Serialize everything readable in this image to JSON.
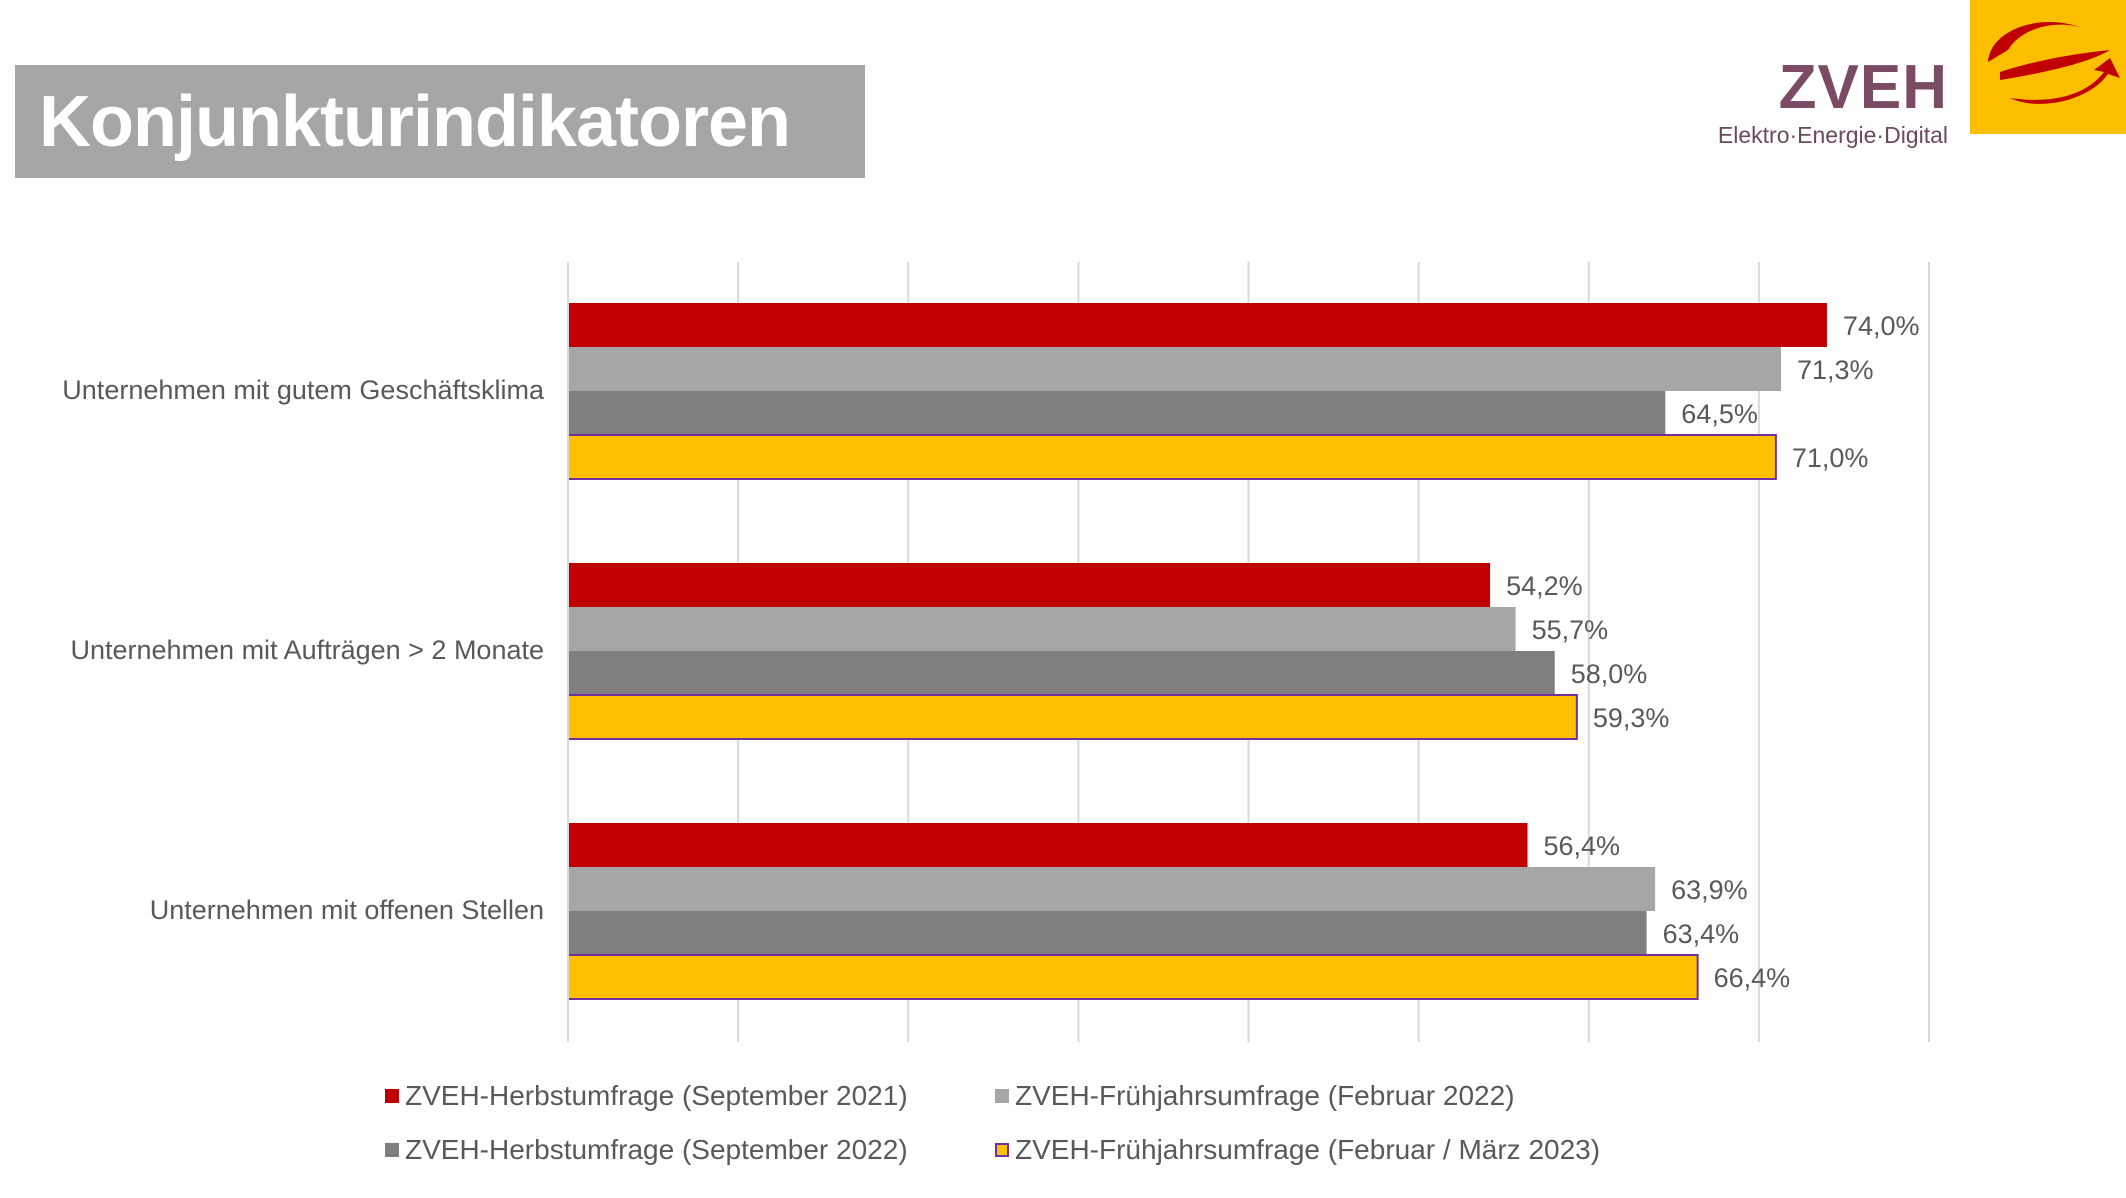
{
  "title": "Konjunkturindikatoren",
  "logo": {
    "name": "ZVEH",
    "tagline": "Elektro·Energie·Digital",
    "icon": "zveh-e-mark-icon"
  },
  "colors": {
    "accent": "#fbbf00",
    "title_bg": "#a6a6a6"
  },
  "chart_data": {
    "type": "bar",
    "orientation": "horizontal",
    "categories": [
      "Unternehmen mit gutem Geschäftsklima",
      "Unternehmen mit Aufträgen > 2 Monate",
      "Unternehmen mit offenen Stellen"
    ],
    "series": [
      {
        "name": "ZVEH-Herbstumfrage (September 2021)",
        "color": "#c00000",
        "values": [
          74.0,
          54.2,
          56.4
        ],
        "labels": [
          "74,0%",
          "54,2%",
          "56,4%"
        ]
      },
      {
        "name": "ZVEH-Frühjahrsumfrage (Februar 2022)",
        "color": "#a6a6a6",
        "values": [
          71.3,
          55.7,
          63.9
        ],
        "labels": [
          "71,3%",
          "55,7%",
          "63,9%"
        ]
      },
      {
        "name": "ZVEH-Herbstumfrage (September 2022)",
        "color": "#7f7f7f",
        "values": [
          64.5,
          58.0,
          63.4
        ],
        "labels": [
          "64,5%",
          "58,0%",
          "63,4%"
        ]
      },
      {
        "name": "ZVEH-Frühjahrsumfrage (Februar / März 2023)",
        "color": "#ffc000",
        "border": "#7030a0",
        "values": [
          71.0,
          59.3,
          66.4
        ],
        "labels": [
          "71,0%",
          "59,3%",
          "66,4%"
        ]
      }
    ],
    "xlim": [
      0,
      80
    ],
    "grid": true,
    "legend_position": "bottom"
  }
}
